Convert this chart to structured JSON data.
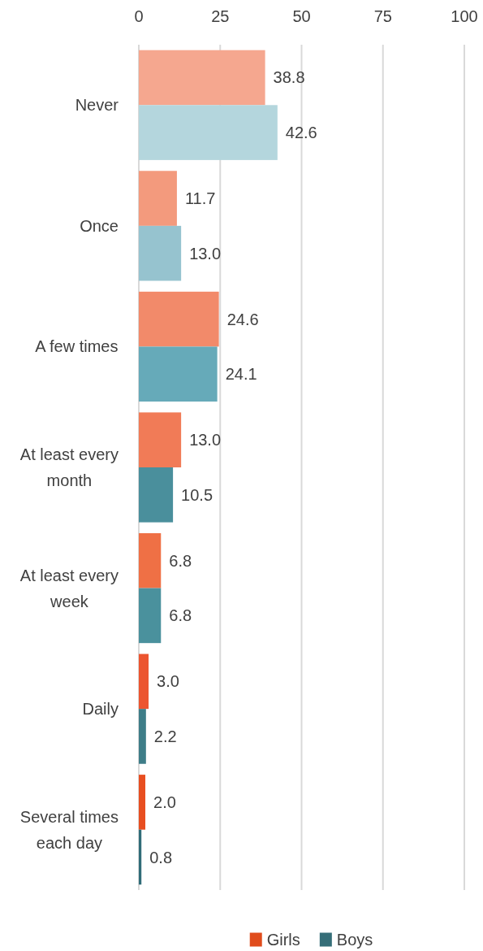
{
  "chart_data": {
    "type": "bar",
    "orientation": "horizontal",
    "categories": [
      "Never",
      "Once",
      "A few times",
      "At least every month",
      "At least every week",
      "Daily",
      "Several times each day"
    ],
    "series": [
      {
        "name": "Girls",
        "color": "#e04c1c",
        "colors": [
          "#f5a78f",
          "#f39a7d",
          "#f28a6a",
          "#f17b57",
          "#ef7045",
          "#ec5530",
          "#e84e20"
        ],
        "values": [
          38.8,
          11.7,
          24.6,
          13.0,
          6.8,
          3.0,
          2.0
        ],
        "value_labels": [
          "38.8",
          "11.7",
          "24.6",
          "13.0",
          "6.8",
          "3.0",
          "2.0"
        ]
      },
      {
        "name": "Boys",
        "color": "#356e78",
        "colors": [
          "#b4d6dd",
          "#96c3cf",
          "#66aab9",
          "#4a8f9c",
          "#4a919d",
          "#3e7d88",
          "#306c78"
        ],
        "values": [
          42.6,
          13.0,
          24.1,
          10.5,
          6.8,
          2.2,
          0.8
        ],
        "value_labels": [
          "42.6",
          "13.0",
          "24.1",
          "10.5",
          "6.8",
          "2.2",
          "0.8"
        ]
      }
    ],
    "xlim": [
      0,
      100
    ],
    "xticks": [
      0,
      25,
      50,
      75,
      100
    ],
    "grid": "x",
    "legend": "bottom"
  }
}
